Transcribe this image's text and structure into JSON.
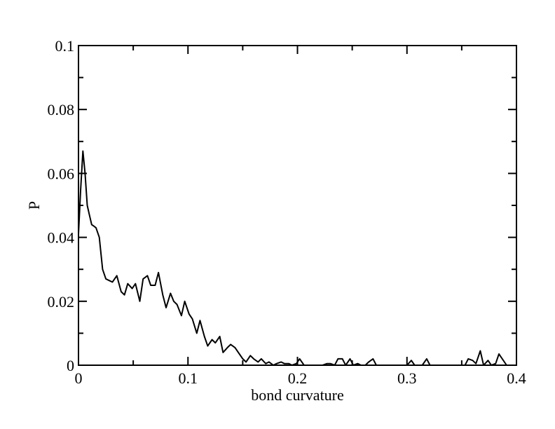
{
  "chart_data": {
    "type": "line",
    "title": "",
    "xlabel": "bond curvature",
    "ylabel": "P",
    "xlim": [
      0,
      0.4
    ],
    "ylim": [
      0,
      0.1
    ],
    "grid": false,
    "x_ticks": [
      0,
      0.1,
      0.2,
      0.3,
      0.4
    ],
    "x_tick_labels": [
      "0",
      "0.1",
      "0.2",
      "0.3",
      "0.4"
    ],
    "y_ticks": [
      0,
      0.02,
      0.04,
      0.06,
      0.08,
      0.1
    ],
    "y_tick_labels": [
      "0",
      "0.02",
      "0.04",
      "0.06",
      "0.08",
      "0.1"
    ],
    "series": [
      {
        "color": "#000000",
        "x": [
          0.0,
          0.002,
          0.004,
          0.006,
          0.008,
          0.01,
          0.012,
          0.014,
          0.016,
          0.019,
          0.022,
          0.025,
          0.028,
          0.031,
          0.035,
          0.039,
          0.042,
          0.045,
          0.049,
          0.052,
          0.056,
          0.059,
          0.063,
          0.066,
          0.07,
          0.073,
          0.077,
          0.08,
          0.084,
          0.087,
          0.09,
          0.094,
          0.097,
          0.101,
          0.104,
          0.108,
          0.111,
          0.115,
          0.118,
          0.122,
          0.125,
          0.129,
          0.132,
          0.136,
          0.139,
          0.143,
          0.146,
          0.15,
          0.153,
          0.157,
          0.16,
          0.164,
          0.167,
          0.171,
          0.174,
          0.178,
          0.181,
          0.185,
          0.188,
          0.192,
          0.195,
          0.199,
          0.202,
          0.206,
          0.209,
          0.213,
          0.216,
          0.22,
          0.223,
          0.227,
          0.23,
          0.234,
          0.237,
          0.241,
          0.244,
          0.248,
          0.251,
          0.255,
          0.258,
          0.262,
          0.265,
          0.269,
          0.272,
          0.276,
          0.279,
          0.283,
          0.286,
          0.29,
          0.293,
          0.297,
          0.3,
          0.304,
          0.307,
          0.311,
          0.314,
          0.318,
          0.321,
          0.325,
          0.328,
          0.332,
          0.335,
          0.339,
          0.342,
          0.346,
          0.349,
          0.353,
          0.356,
          0.36,
          0.363,
          0.367,
          0.37,
          0.374,
          0.377,
          0.381,
          0.384,
          0.388,
          0.391,
          0.395
        ],
        "y": [
          0.041,
          0.055,
          0.067,
          0.06,
          0.05,
          0.047,
          0.044,
          0.0435,
          0.043,
          0.04,
          0.03,
          0.027,
          0.0265,
          0.026,
          0.028,
          0.023,
          0.022,
          0.0255,
          0.024,
          0.0255,
          0.02,
          0.027,
          0.028,
          0.025,
          0.025,
          0.029,
          0.022,
          0.018,
          0.0225,
          0.02,
          0.019,
          0.0155,
          0.02,
          0.016,
          0.0145,
          0.01,
          0.014,
          0.009,
          0.006,
          0.008,
          0.007,
          0.009,
          0.004,
          0.0055,
          0.0065,
          0.0055,
          0.004,
          0.002,
          0.001,
          0.003,
          0.002,
          0.001,
          0.002,
          0.0005,
          0.001,
          0.0,
          0.0005,
          0.001,
          0.0005,
          0.0005,
          0.0,
          0.0005,
          0.002,
          0.0,
          0.0,
          0.0,
          0.0,
          0.0,
          0.0,
          0.0005,
          0.0005,
          0.0,
          0.002,
          0.002,
          0.0,
          0.002,
          0.0,
          0.0005,
          0.0,
          0.0,
          0.001,
          0.002,
          0.0,
          0.0,
          0.0,
          0.0,
          0.0,
          0.0,
          0.0,
          0.0,
          0.0,
          0.0015,
          0.0,
          0.0,
          0.0,
          0.002,
          0.0,
          0.0,
          0.0,
          0.0,
          0.0,
          0.0,
          0.0,
          0.0,
          0.0,
          0.0,
          0.002,
          0.0015,
          0.0005,
          0.0045,
          0.0,
          0.0015,
          0.0,
          0.0005,
          0.0035,
          0.0015,
          0.0,
          0.0
        ]
      }
    ]
  }
}
